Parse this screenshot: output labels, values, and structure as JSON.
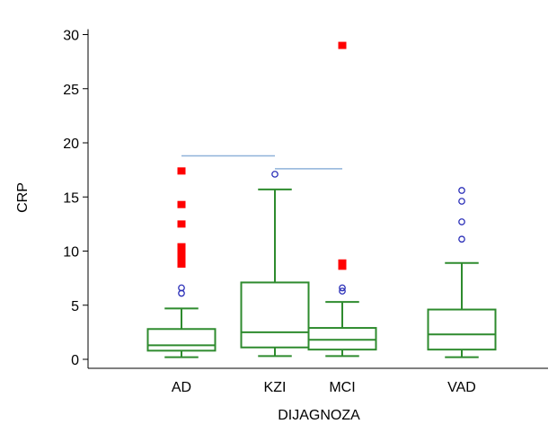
{
  "chart_data": {
    "type": "box",
    "xlabel": "DIJAGNOZA",
    "ylabel": "CRP",
    "ylim": [
      0,
      30
    ],
    "yticks": [
      0,
      5,
      10,
      15,
      20,
      25,
      30
    ],
    "grid": false,
    "colors": {
      "box": "#2e8b2e",
      "extreme_outlier": "#ff0000",
      "outlier": "#2b2fb8",
      "comparison_line": "#8fb3d9"
    },
    "categories": [
      "AD",
      "KZI",
      "MCI",
      "VAD"
    ],
    "boxes": [
      {
        "category": "AD",
        "whisker_low": 0.2,
        "q1": 0.8,
        "median": 1.3,
        "q3": 2.8,
        "whisker_high": 4.7,
        "outliers": [
          6.1,
          6.6
        ],
        "extreme_outliers": [
          8.8,
          9.2,
          9.6,
          10.0,
          10.4,
          12.5,
          14.3,
          17.4
        ]
      },
      {
        "category": "KZI",
        "whisker_low": 0.3,
        "q1": 1.1,
        "median": 2.5,
        "q3": 7.1,
        "whisker_high": 15.7,
        "outliers": [
          17.1
        ],
        "extreme_outliers": []
      },
      {
        "category": "MCI",
        "whisker_low": 0.3,
        "q1": 0.9,
        "median": 1.8,
        "q3": 2.9,
        "whisker_high": 5.3,
        "outliers": [
          6.3,
          6.6
        ],
        "extreme_outliers": [
          8.6,
          8.9,
          29.0
        ]
      },
      {
        "category": "VAD",
        "whisker_low": 0.2,
        "q1": 0.9,
        "median": 2.3,
        "q3": 4.6,
        "whisker_high": 8.9,
        "outliers": [
          11.1,
          12.7,
          14.6,
          15.6
        ],
        "extreme_outliers": []
      }
    ],
    "comparison_lines": [
      {
        "from": "AD",
        "to": "KZI",
        "y": 18.8
      },
      {
        "from": "KZI",
        "to": "MCI",
        "y": 17.6
      }
    ]
  }
}
